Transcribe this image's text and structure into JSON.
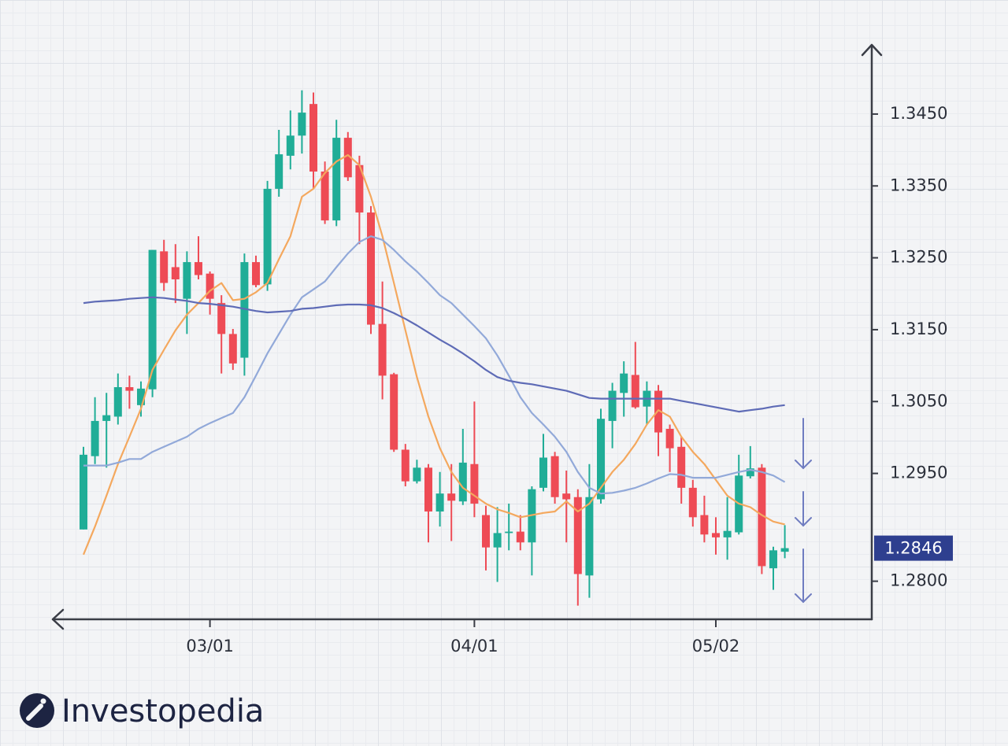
{
  "brand": "Investopedia",
  "chart_data": {
    "type": "candlestick",
    "categories": [
      null,
      null,
      null,
      null,
      null,
      null,
      null,
      null,
      null,
      null,
      null,
      "03/01",
      null,
      null,
      null,
      null,
      null,
      null,
      null,
      null,
      null,
      null,
      null,
      null,
      null,
      null,
      null,
      null,
      null,
      null,
      null,
      null,
      null,
      null,
      "04/01",
      null,
      null,
      null,
      null,
      null,
      null,
      null,
      null,
      null,
      null,
      null,
      null,
      null,
      null,
      null,
      null,
      null,
      null,
      null,
      null,
      "05/02",
      null,
      null,
      null,
      null,
      null,
      null
    ],
    "open": [
      1.2872,
      1.2974,
      1.3023,
      1.3029,
      1.307,
      1.3045,
      1.3067,
      1.3259,
      1.3237,
      1.3193,
      1.3244,
      1.3228,
      1.3187,
      1.3144,
      1.3111,
      1.3244,
      1.3213,
      1.3346,
      1.3392,
      1.342,
      1.3464,
      1.337,
      1.3302,
      1.3417,
      1.3379,
      1.3313,
      1.3158,
      1.3088,
      1.2983,
      1.2939,
      1.2958,
      1.2897,
      1.2922,
      1.2911,
      1.2963,
      1.2892,
      1.2847,
      1.2867,
      1.2869,
      1.2854,
      1.293,
      1.2974,
      1.2922,
      1.2917,
      1.2808,
      1.2914,
      1.3023,
      1.3062,
      1.3087,
      1.3043,
      1.3065,
      1.3012,
      1.2987,
      1.293,
      1.2892,
      1.2867,
      1.2861,
      1.2868,
      1.2946,
      1.2958,
      1.2818,
      1.2841
    ],
    "high": [
      1.2987,
      1.3056,
      1.3062,
      1.3089,
      1.3086,
      1.3078,
      1.3261,
      1.3275,
      1.3269,
      1.3259,
      1.328,
      1.3231,
      1.3198,
      1.3151,
      1.3256,
      1.3253,
      1.3357,
      1.3428,
      1.3455,
      1.3483,
      1.348,
      1.3384,
      1.3442,
      1.3425,
      1.3392,
      1.3322,
      1.3217,
      1.309,
      1.2991,
      1.2969,
      1.2963,
      1.2952,
      1.2963,
      1.3012,
      1.305,
      1.2905,
      1.2903,
      1.2908,
      1.2892,
      1.2932,
      1.3005,
      1.298,
      1.2954,
      1.2928,
      1.2963,
      1.304,
      1.3076,
      1.3106,
      1.3133,
      1.3078,
      1.3073,
      1.3018,
      1.3001,
      1.2941,
      1.2919,
      1.2889,
      1.2917,
      1.2976,
      1.2988,
      1.2963,
      1.2848,
      1.2878
    ],
    "low": [
      1.2872,
      1.2963,
      1.2958,
      1.3018,
      1.304,
      1.3029,
      1.3056,
      1.3204,
      1.3187,
      1.3144,
      1.322,
      1.3171,
      1.3089,
      1.3094,
      1.3086,
      1.3209,
      1.3204,
      1.3335,
      1.3373,
      1.3395,
      1.3346,
      1.3297,
      1.3294,
      1.3357,
      1.3269,
      1.3144,
      1.3053,
      1.298,
      1.2932,
      1.2936,
      1.2854,
      1.2876,
      1.2856,
      1.2906,
      1.2889,
      1.2815,
      1.2799,
      1.2843,
      1.2843,
      1.2808,
      1.2925,
      1.2908,
      1.2854,
      1.2766,
      1.2777,
      1.2908,
      1.2985,
      1.3029,
      1.304,
      1.3018,
      1.2974,
      1.2952,
      1.2908,
      1.2876,
      1.2854,
      1.2837,
      1.283,
      1.2865,
      1.2943,
      1.281,
      1.2788,
      1.2832
    ],
    "close": [
      1.2976,
      1.3023,
      1.3031,
      1.307,
      1.3065,
      1.3068,
      1.3261,
      1.3215,
      1.322,
      1.3244,
      1.3226,
      1.3193,
      1.3144,
      1.3103,
      1.3244,
      1.3212,
      1.3346,
      1.3394,
      1.342,
      1.3452,
      1.337,
      1.3302,
      1.3417,
      1.3362,
      1.3313,
      1.3157,
      1.3086,
      1.2983,
      1.2939,
      1.2958,
      1.2897,
      1.2922,
      1.2912,
      1.2965,
      1.2908,
      1.2847,
      1.2867,
      1.2869,
      1.2854,
      1.2928,
      1.2972,
      1.2917,
      1.2914,
      1.281,
      1.2917,
      1.3026,
      1.3065,
      1.3089,
      1.3042,
      1.3065,
      1.3007,
      1.2985,
      1.293,
      1.2889,
      1.2865,
      1.2861,
      1.287,
      1.2947,
      1.2957,
      1.2821,
      1.2843,
      1.2846
    ],
    "up_color": "#20ad97",
    "down_color": "#ee4b55",
    "overlays": [
      {
        "color": "#f4a85e",
        "values": [
          1.2837,
          1.2876,
          1.2919,
          1.2963,
          1.3001,
          1.304,
          1.3094,
          1.3122,
          1.3149,
          1.3171,
          1.3187,
          1.3204,
          1.3215,
          1.3191,
          1.3193,
          1.3202,
          1.3215,
          1.3248,
          1.328,
          1.3335,
          1.3346,
          1.3368,
          1.3384,
          1.3393,
          1.3379,
          1.3335,
          1.328,
          1.3215,
          1.3149,
          1.3084,
          1.3029,
          1.2985,
          1.2952,
          1.293,
          1.2919,
          1.2908,
          1.29,
          1.2895,
          1.2889,
          1.2892,
          1.2895,
          1.2897,
          1.2911,
          1.2897,
          1.2908,
          1.293,
          1.2952,
          1.2969,
          1.2991,
          1.3018,
          1.3038,
          1.3029,
          1.3001,
          1.298,
          1.2963,
          1.2941,
          1.2919,
          1.2908,
          1.2903,
          1.2892,
          1.2883,
          1.2879
        ]
      },
      {
        "color": "#92a9d9",
        "values": [
          1.2961,
          1.2961,
          1.2961,
          1.2965,
          1.297,
          1.297,
          1.298,
          1.2987,
          1.2994,
          1.3001,
          1.3012,
          1.302,
          1.3027,
          1.3034,
          1.3056,
          1.3086,
          1.3117,
          1.3144,
          1.3171,
          1.3195,
          1.3206,
          1.3217,
          1.3237,
          1.3256,
          1.3272,
          1.328,
          1.3275,
          1.3261,
          1.3245,
          1.3231,
          1.3215,
          1.3198,
          1.3187,
          1.3171,
          1.3155,
          1.3138,
          1.3114,
          1.3086,
          1.3056,
          1.3034,
          1.3018,
          1.3001,
          1.298,
          1.2952,
          1.293,
          1.2922,
          1.2923,
          1.2926,
          1.293,
          1.2936,
          1.2943,
          1.2949,
          1.2948,
          1.2944,
          1.2944,
          1.2944,
          1.2948,
          1.2952,
          1.2955,
          1.2952,
          1.2947,
          1.2938
        ]
      },
      {
        "color": "#5e6bb6",
        "values": [
          1.3187,
          1.3189,
          1.319,
          1.3191,
          1.3193,
          1.3194,
          1.3195,
          1.3194,
          1.3192,
          1.319,
          1.3187,
          1.3186,
          1.3184,
          1.3182,
          1.3179,
          1.3176,
          1.3174,
          1.3175,
          1.3176,
          1.3179,
          1.318,
          1.3182,
          1.3184,
          1.3185,
          1.3185,
          1.3184,
          1.318,
          1.3173,
          1.3165,
          1.3156,
          1.3146,
          1.3136,
          1.3127,
          1.3117,
          1.3106,
          1.3094,
          1.3084,
          1.3079,
          1.3076,
          1.3074,
          1.3071,
          1.3068,
          1.3065,
          1.306,
          1.3055,
          1.3054,
          1.3054,
          1.3054,
          1.3054,
          1.3054,
          1.3054,
          1.3054,
          1.3051,
          1.3048,
          1.3045,
          1.3042,
          1.3039,
          1.3036,
          1.3038,
          1.304,
          1.3043,
          1.3045
        ]
      }
    ],
    "ylim": [
      1.2747,
      1.3543
    ],
    "yticks": [
      {
        "value": 1.345,
        "label": "1.3450"
      },
      {
        "value": 1.335,
        "label": "1.3350"
      },
      {
        "value": 1.325,
        "label": "1.3250"
      },
      {
        "value": 1.315,
        "label": "1.3150"
      },
      {
        "value": 1.305,
        "label": "1.3050"
      },
      {
        "value": 1.295,
        "label": "1.2950"
      },
      {
        "value": 1.28,
        "label": "1.2800"
      }
    ],
    "last_price": 1.2846,
    "last_price_color": "#2e3f8f"
  }
}
